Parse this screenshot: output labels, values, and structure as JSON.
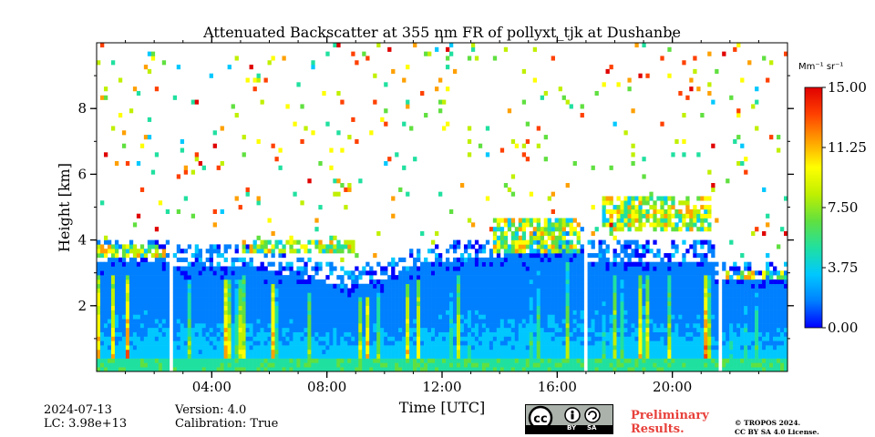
{
  "chart_data": {
    "type": "heatmap",
    "title": "Attenuated Backscatter at 355 nm FR of pollyxt_tjk at Dushanbe",
    "xlabel": "Time [UTC]",
    "ylabel": "Height [km]",
    "xlim": [
      0,
      24
    ],
    "ylim": [
      0,
      10
    ],
    "x_ticks": [
      4,
      8,
      12,
      16,
      20
    ],
    "x_tick_labels": [
      "04:00",
      "08:00",
      "12:00",
      "16:00",
      "20:00"
    ],
    "y_ticks": [
      2,
      4,
      6,
      8
    ],
    "y_tick_labels": [
      "2",
      "4",
      "6",
      "8"
    ],
    "colorbar": {
      "unit_label": "Mm⁻¹ sr⁻¹",
      "range": [
        0,
        15
      ],
      "ticks": [
        0,
        3.75,
        7.5,
        11.25,
        15
      ],
      "tick_labels": [
        "0.00",
        "3.75",
        "7.50",
        "11.25",
        "15.00"
      ],
      "colormap": [
        "#0000ff",
        "#0080ff",
        "#00c8ff",
        "#20e0a0",
        "#60e040",
        "#c0f000",
        "#ffff00",
        "#ffa000",
        "#ff4000",
        "#e00000"
      ]
    },
    "data_gaps_hours": [
      [
        2.5,
        2.65
      ],
      [
        16.95,
        17.05
      ],
      [
        21.55,
        21.7
      ]
    ],
    "cloud_layers": [
      {
        "start": 0,
        "end": 2.4,
        "base_km": 3.5,
        "top_km": 3.8
      },
      {
        "start": 5.0,
        "end": 9.0,
        "base_km": 3.6,
        "top_km": 4.0
      },
      {
        "start": 13.8,
        "end": 16.8,
        "base_km": 3.6,
        "top_km": 4.6
      },
      {
        "start": 17.6,
        "end": 21.3,
        "base_km": 4.3,
        "top_km": 5.3
      },
      {
        "start": 21.8,
        "end": 24.0,
        "base_km": 2.8,
        "top_km": 3.0
      }
    ]
  },
  "footer": {
    "date": "2024-07-13",
    "lc": "LC: 3.98e+13",
    "version": "Version: 4.0",
    "calibration": "Calibration: True",
    "preliminary_line1": "Preliminary",
    "preliminary_line2": "Results.",
    "copyright_line1": "© TROPOS 2024.",
    "copyright_line2": "CC BY SA 4.0 License.",
    "license_badge_text": {
      "cc": "cc",
      "by": "BY",
      "sa": "SA"
    }
  }
}
